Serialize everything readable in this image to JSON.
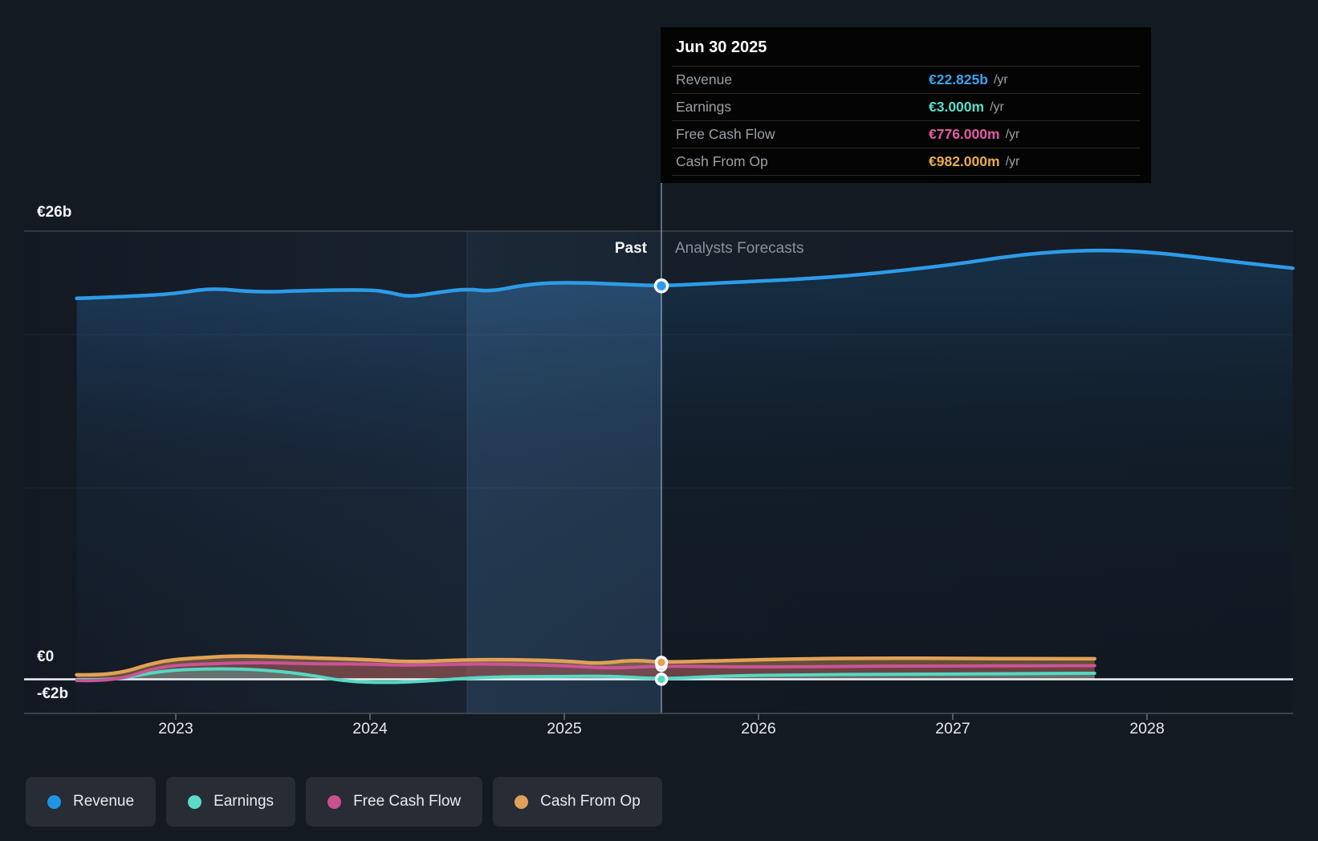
{
  "tooltip": {
    "date": "Jun 30 2025",
    "rows": [
      {
        "label": "Revenue",
        "value": "€22.825b",
        "unit": "/yr",
        "color": "#3ba2ec"
      },
      {
        "label": "Earnings",
        "value": "€3.000m",
        "unit": "/yr",
        "color": "#55dec9"
      },
      {
        "label": "Free Cash Flow",
        "value": "€776.000m",
        "unit": "/yr",
        "color": "#e25ca4"
      },
      {
        "label": "Cash From Op",
        "value": "€982.000m",
        "unit": "/yr",
        "color": "#e9ab4d"
      }
    ]
  },
  "chart_labels": {
    "y_top": "€26b",
    "y_zero": "€0",
    "y_neg": "-€2b",
    "past": "Past",
    "forecast": "Analysts Forecasts",
    "x_ticks": [
      "2023",
      "2024",
      "2025",
      "2026",
      "2027",
      "2028"
    ]
  },
  "legend": {
    "items": [
      {
        "label": "Revenue",
        "color": "#1e96e4"
      },
      {
        "label": "Earnings",
        "color": "#5cdcc8"
      },
      {
        "label": "Free Cash Flow",
        "color": "#c9518f"
      },
      {
        "label": "Cash From Op",
        "color": "#dfa258"
      }
    ]
  },
  "chart_data": {
    "type": "area",
    "title": "Revenue, earnings and cash flow history with analyst forecasts",
    "currency_unit": "EUR billions per year",
    "x_axis": {
      "tick_years": [
        2023,
        2024,
        2025,
        2026,
        2027,
        2028
      ],
      "range": [
        2022.2,
        2028.9
      ]
    },
    "y_axis": {
      "shown_labels": [
        "€26b",
        "€0",
        "-€2b"
      ],
      "shown_values": [
        26,
        0,
        -2
      ],
      "grid": "partial"
    },
    "divider": {
      "x_year": 2025.5,
      "past_label": "Past",
      "forecast_label": "Analysts Forecasts"
    },
    "highlight_band_years": [
      2024.5,
      2025.5
    ],
    "hover_marker": {
      "date": "Jun 30 2025",
      "x_year": 2025.5
    },
    "series": [
      {
        "name": "Revenue",
        "color": "#2d9ce8",
        "marker_value": 22.825,
        "fill": "to_bottom",
        "points": [
          [
            2022.49,
            22.1
          ],
          [
            2022.75,
            22.2
          ],
          [
            2023.0,
            22.37
          ],
          [
            2023.18,
            22.7
          ],
          [
            2023.42,
            22.45
          ],
          [
            2023.67,
            22.55
          ],
          [
            2024.0,
            22.6
          ],
          [
            2024.1,
            22.45
          ],
          [
            2024.2,
            22.18
          ],
          [
            2024.35,
            22.45
          ],
          [
            2024.5,
            22.65
          ],
          [
            2024.62,
            22.5
          ],
          [
            2024.78,
            22.85
          ],
          [
            2024.92,
            23.0
          ],
          [
            2025.11,
            23.0
          ],
          [
            2025.32,
            22.9
          ],
          [
            2025.5,
            22.825
          ],
          [
            2025.73,
            22.95
          ],
          [
            2026.0,
            23.1
          ],
          [
            2026.27,
            23.25
          ],
          [
            2026.56,
            23.5
          ],
          [
            2027.0,
            24.05
          ],
          [
            2027.26,
            24.5
          ],
          [
            2027.51,
            24.8
          ],
          [
            2027.76,
            24.9
          ],
          [
            2028.0,
            24.8
          ],
          [
            2028.25,
            24.5
          ],
          [
            2028.5,
            24.15
          ],
          [
            2028.75,
            23.85
          ]
        ]
      },
      {
        "name": "Earnings",
        "color": "#54d9c4",
        "marker_value": 0.003,
        "fill": "to_zero",
        "points": [
          [
            2022.49,
            -0.02
          ],
          [
            2022.68,
            -0.07
          ],
          [
            2022.92,
            0.5
          ],
          [
            2023.17,
            0.62
          ],
          [
            2023.42,
            0.58
          ],
          [
            2023.67,
            0.3
          ],
          [
            2023.87,
            -0.12
          ],
          [
            2024.08,
            -0.2
          ],
          [
            2024.28,
            -0.12
          ],
          [
            2024.5,
            0.07
          ],
          [
            2024.74,
            0.16
          ],
          [
            2024.99,
            0.16
          ],
          [
            2025.24,
            0.2
          ],
          [
            2025.5,
            0.003
          ],
          [
            2025.82,
            0.2
          ],
          [
            2026.23,
            0.26
          ],
          [
            2026.64,
            0.3
          ],
          [
            2027.05,
            0.3
          ],
          [
            2027.47,
            0.34
          ],
          [
            2027.73,
            0.35
          ]
        ]
      },
      {
        "name": "Free Cash Flow",
        "color": "#cb5497",
        "marker_value": 0.776,
        "fill": "to_zero",
        "points": [
          [
            2022.49,
            -0.07
          ],
          [
            2022.68,
            -0.14
          ],
          [
            2022.92,
            0.77
          ],
          [
            2023.17,
            0.9
          ],
          [
            2023.42,
            0.98
          ],
          [
            2023.67,
            0.9
          ],
          [
            2024.0,
            0.88
          ],
          [
            2024.2,
            0.8
          ],
          [
            2024.5,
            0.9
          ],
          [
            2024.78,
            0.86
          ],
          [
            2025.03,
            0.77
          ],
          [
            2025.24,
            0.63
          ],
          [
            2025.5,
            0.776
          ],
          [
            2025.82,
            0.72
          ],
          [
            2026.23,
            0.72
          ],
          [
            2026.64,
            0.77
          ],
          [
            2027.05,
            0.77
          ],
          [
            2027.47,
            0.79
          ],
          [
            2027.73,
            0.79
          ]
        ]
      },
      {
        "name": "Cash From Op",
        "color": "#e2a156",
        "marker_value": 0.982,
        "fill": "to_zero",
        "points": [
          [
            2022.49,
            0.26
          ],
          [
            2022.68,
            0.2
          ],
          [
            2022.92,
            1.1
          ],
          [
            2023.17,
            1.28
          ],
          [
            2023.33,
            1.37
          ],
          [
            2023.58,
            1.28
          ],
          [
            2024.0,
            1.14
          ],
          [
            2024.2,
            1.0
          ],
          [
            2024.5,
            1.14
          ],
          [
            2024.78,
            1.14
          ],
          [
            2025.03,
            1.05
          ],
          [
            2025.17,
            0.91
          ],
          [
            2025.36,
            1.12
          ],
          [
            2025.5,
            0.982
          ],
          [
            2025.82,
            1.09
          ],
          [
            2026.23,
            1.19
          ],
          [
            2026.64,
            1.23
          ],
          [
            2027.05,
            1.21
          ],
          [
            2027.47,
            1.19
          ],
          [
            2027.73,
            1.19
          ]
        ]
      }
    ]
  }
}
